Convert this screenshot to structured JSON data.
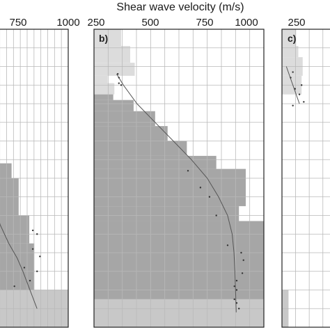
{
  "chart_data": {
    "type": "step",
    "xlabel": "Shear wave velocity (m/s)",
    "x_ticks_a": [
      "750",
      "1000"
    ],
    "x_ticks_b": [
      "250",
      "500",
      "750",
      "1000"
    ],
    "x_ticks_c": [
      "250"
    ],
    "panels": [
      {
        "label": "",
        "xlim": [
          460,
          1040
        ],
        "steps": [
          {
            "depth": [
              0,
              7.2
            ],
            "vs": 470
          },
          {
            "depth": [
              7.2,
              8.0
            ],
            "vs": 640
          },
          {
            "depth": [
              8.0,
              10.0
            ],
            "vs": 690
          },
          {
            "depth": [
              10.0,
              11.5
            ],
            "vs": 765
          },
          {
            "depth": [
              11.5,
              14.0
            ],
            "vs": 800
          }
        ],
        "lower_band": {
          "depth": [
            14.0,
            16.0
          ],
          "vs": 1040
        },
        "curve": [
          [
            470,
            8.5
          ],
          [
            520,
            9.5
          ],
          [
            560,
            10.5
          ],
          [
            620,
            11.5
          ],
          [
            680,
            12.3
          ],
          [
            720,
            13.0
          ],
          [
            760,
            13.8
          ],
          [
            820,
            15.0
          ]
        ],
        "points": [
          [
            790,
            10.8
          ],
          [
            820,
            11.0
          ],
          [
            790,
            11.8
          ],
          [
            840,
            12.2
          ],
          [
            730,
            12.8
          ],
          [
            820,
            13.0
          ],
          [
            770,
            13.5
          ],
          [
            660,
            13.8
          ]
        ]
      },
      {
        "label": "b)",
        "xlim": [
          250,
          1000
        ],
        "upper": [
          {
            "depth": [
              0,
              0.9
            ],
            "vs": 370
          },
          {
            "depth": [
              0.9,
              1.8
            ],
            "vs": 410
          },
          {
            "depth": [
              1.8,
              2.5
            ],
            "vs": 430
          },
          {
            "depth": [
              2.5,
              2.9
            ],
            "vs": 310
          },
          {
            "depth": [
              2.9,
              3.5
            ],
            "vs": 340
          }
        ],
        "steps": [
          {
            "depth": [
              2.9,
              3.8
            ],
            "vs": 335
          },
          {
            "depth": [
              3.8,
              4.4
            ],
            "vs": 425
          },
          {
            "depth": [
              4.4,
              5.2
            ],
            "vs": 520
          },
          {
            "depth": [
              5.2,
              6.0
            ],
            "vs": 575
          },
          {
            "depth": [
              6.0,
              6.8
            ],
            "vs": 660
          },
          {
            "depth": [
              6.8,
              7.5
            ],
            "vs": 790
          },
          {
            "depth": [
              7.5,
              9.5
            ],
            "vs": 920
          },
          {
            "depth": [
              9.5,
              10.3
            ],
            "vs": 890
          },
          {
            "depth": [
              10.3,
              14.5
            ],
            "vs": 1000
          }
        ],
        "lower_band": {
          "depth": [
            14.5,
            16.0
          ],
          "vs": 1000
        },
        "curve": [
          [
            350,
            2.4
          ],
          [
            380,
            3.0
          ],
          [
            440,
            4.0
          ],
          [
            520,
            5.0
          ],
          [
            600,
            6.0
          ],
          [
            680,
            7.0
          ],
          [
            750,
            8.0
          ],
          [
            800,
            9.0
          ],
          [
            840,
            10.0
          ],
          [
            860,
            11.0
          ],
          [
            868,
            12.0
          ],
          [
            872,
            13.0
          ],
          [
            875,
            14.0
          ],
          [
            878,
            15.2
          ]
        ],
        "points": [
          [
            355,
            2.4
          ],
          [
            360,
            2.6
          ],
          [
            360,
            2.9
          ],
          [
            370,
            3.0
          ],
          [
            665,
            7.6
          ],
          [
            720,
            8.5
          ],
          [
            760,
            9.0
          ],
          [
            790,
            10.0
          ],
          [
            840,
            11.6
          ],
          [
            900,
            12.0
          ],
          [
            910,
            12.4
          ],
          [
            905,
            13.1
          ],
          [
            880,
            13.5
          ],
          [
            870,
            13.8
          ],
          [
            880,
            14.0
          ],
          [
            870,
            14.5
          ],
          [
            880,
            14.7
          ],
          [
            890,
            15.0
          ]
        ]
      },
      {
        "label": "c)",
        "xlim": [
          250,
          1000
        ],
        "upper": [
          {
            "depth": [
              0,
              0.9
            ],
            "vs": 315
          },
          {
            "depth": [
              0.9,
              1.5
            ],
            "vs": 325
          },
          {
            "depth": [
              1.5,
              2.5
            ],
            "vs": 345
          },
          {
            "depth": [
              2.5,
              3.5
            ],
            "vs": 340
          }
        ],
        "steps": [
          {
            "depth": [
              2.5,
              3.8
            ],
            "vs": 250
          },
          {
            "depth": [
              3.8,
              14.0
            ],
            "vs": 250
          }
        ],
        "lower_band": {
          "depth": [
            14.0,
            16.0
          ],
          "vs": 280
        },
        "curve": [
          [
            270,
            2.0
          ],
          [
            300,
            3.0
          ],
          [
            330,
            4.0
          ]
        ],
        "points": [
          [
            300,
            2.3
          ],
          [
            290,
            2.6
          ],
          [
            340,
            3.0
          ],
          [
            310,
            3.2
          ],
          [
            330,
            3.5
          ],
          [
            350,
            3.9
          ],
          [
            300,
            4.1
          ]
        ]
      }
    ],
    "grid": true,
    "ylim": [
      0,
      16
    ]
  }
}
